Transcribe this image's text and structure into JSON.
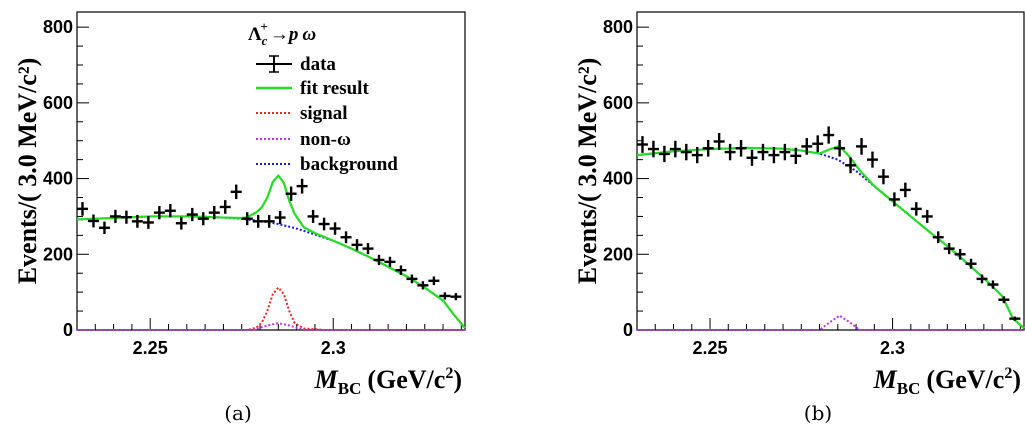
{
  "chart_data": [
    {
      "type": "line",
      "panel_label": "(a)",
      "process": "Λc+→p ω",
      "process_parts": {
        "lambda": "Λ",
        "lambda_sub": "c",
        "lambda_sup": "+",
        "arrow": "→",
        "p": "p",
        "omega": "ω"
      },
      "xlabel_main": "M",
      "xlabel_sub": "BC",
      "xlabel_units": "(GeV/c",
      "xlabel_sup": "2",
      "xlabel_close": ")",
      "ylabel": "Events/( 3.0 MeV/c²)",
      "xlim": [
        2.23,
        2.336
      ],
      "ylim": [
        0,
        840
      ],
      "xticks": [
        {
          "v": 2.25,
          "label": "2.25"
        },
        {
          "v": 2.3,
          "label": "2.3"
        }
      ],
      "yticks": [
        {
          "v": 0,
          "label": "0"
        },
        {
          "v": 200,
          "label": "200"
        },
        {
          "v": 400,
          "label": "400"
        },
        {
          "v": 600,
          "label": "600"
        },
        {
          "v": 800,
          "label": "800"
        }
      ],
      "legend": [
        {
          "label": "data",
          "style": "data",
          "color": "#000000"
        },
        {
          "label": "fit result",
          "style": "solid",
          "color": "#22dd22"
        },
        {
          "label": "signal",
          "style": "dotted",
          "color": "#ee2222"
        },
        {
          "label": "non-ω",
          "style": "dotted",
          "color": "#bb33ee"
        },
        {
          "label": "background",
          "style": "dotted",
          "color": "#1a1ad0"
        }
      ],
      "data_points": {
        "x": [
          2.2315,
          2.2345,
          2.2375,
          2.2405,
          2.2435,
          2.2465,
          2.2495,
          2.2525,
          2.2555,
          2.2585,
          2.2615,
          2.2645,
          2.2675,
          2.2705,
          2.2735,
          2.2765,
          2.2795,
          2.2825,
          2.2855,
          2.2885,
          2.2915,
          2.2945,
          2.2975,
          2.3005,
          2.3035,
          2.3065,
          2.3095,
          2.3125,
          2.3155,
          2.3185,
          2.3215,
          2.3245,
          2.3275,
          2.3305,
          2.3335
        ],
        "y": [
          320,
          288,
          270,
          300,
          298,
          287,
          284,
          310,
          315,
          282,
          305,
          294,
          310,
          325,
          365,
          294,
          287,
          287,
          297,
          360,
          380,
          300,
          280,
          268,
          245,
          225,
          215,
          185,
          180,
          158,
          135,
          118,
          130,
          90,
          88
        ]
      },
      "series": [
        {
          "name": "background",
          "x": [
            2.23,
            2.235,
            2.24,
            2.245,
            2.25,
            2.255,
            2.26,
            2.265,
            2.27,
            2.275,
            2.28,
            2.285,
            2.29,
            2.295,
            2.3,
            2.305,
            2.31,
            2.315,
            2.32,
            2.325,
            2.33,
            2.333,
            2.336
          ],
          "y": [
            292,
            294,
            296,
            298,
            300,
            300,
            300,
            299,
            297,
            294,
            288,
            280,
            268,
            252,
            236,
            215,
            192,
            167,
            142,
            112,
            78,
            40,
            5
          ]
        },
        {
          "name": "signal",
          "x": [
            2.23,
            2.27,
            2.2765,
            2.279,
            2.2805,
            2.282,
            2.2835,
            2.285,
            2.2865,
            2.288,
            2.2895,
            2.292,
            2.298,
            2.336
          ],
          "y": [
            0,
            0,
            0,
            6,
            20,
            50,
            95,
            112,
            95,
            50,
            18,
            4,
            0,
            0
          ]
        },
        {
          "name": "non-ω",
          "x": [
            2.23,
            2.278,
            2.282,
            2.285,
            2.288,
            2.292,
            2.336
          ],
          "y": [
            0,
            0,
            12,
            18,
            12,
            0,
            0
          ]
        },
        {
          "name": "fit result",
          "x": [
            2.23,
            2.24,
            2.25,
            2.26,
            2.27,
            2.275,
            2.2765,
            2.279,
            2.2805,
            2.282,
            2.2835,
            2.285,
            2.2865,
            2.288,
            2.2895,
            2.292,
            2.295,
            2.3,
            2.305,
            2.31,
            2.315,
            2.32,
            2.325,
            2.33,
            2.333,
            2.336
          ],
          "y": [
            292,
            296,
            300,
            300,
            297,
            296,
            298,
            311,
            324,
            350,
            391,
            408,
            389,
            341,
            306,
            271,
            256,
            236,
            215,
            192,
            167,
            142,
            112,
            78,
            40,
            5
          ]
        }
      ]
    },
    {
      "type": "line",
      "panel_label": "(b)",
      "xlabel_main": "M",
      "xlabel_sub": "BC",
      "xlabel_units": "(GeV/c",
      "xlabel_sup": "2",
      "xlabel_close": ")",
      "ylabel": "Events/( 3.0 MeV/c²)",
      "xlim": [
        2.23,
        2.336
      ],
      "ylim": [
        0,
        840
      ],
      "xticks": [
        {
          "v": 2.25,
          "label": "2.25"
        },
        {
          "v": 2.3,
          "label": "2.3"
        }
      ],
      "yticks": [
        {
          "v": 0,
          "label": "0"
        },
        {
          "v": 200,
          "label": "200"
        },
        {
          "v": 400,
          "label": "400"
        },
        {
          "v": 600,
          "label": "600"
        },
        {
          "v": 800,
          "label": "800"
        }
      ],
      "data_points": {
        "x": [
          2.2315,
          2.2345,
          2.2375,
          2.2405,
          2.2435,
          2.2465,
          2.2495,
          2.2525,
          2.2555,
          2.2585,
          2.2615,
          2.2645,
          2.2675,
          2.2705,
          2.2735,
          2.2765,
          2.2795,
          2.2825,
          2.2855,
          2.2885,
          2.2915,
          2.2945,
          2.2975,
          2.3005,
          2.3035,
          2.3065,
          2.3095,
          2.3125,
          2.3155,
          2.3185,
          2.3215,
          2.3245,
          2.3275,
          2.3305,
          2.3335
        ],
        "y": [
          490,
          478,
          465,
          478,
          470,
          462,
          480,
          498,
          470,
          480,
          455,
          470,
          462,
          470,
          460,
          485,
          492,
          515,
          480,
          435,
          485,
          450,
          405,
          345,
          370,
          320,
          300,
          245,
          215,
          200,
          175,
          135,
          120,
          80,
          30
        ]
      },
      "series": [
        {
          "name": "background",
          "x": [
            2.23,
            2.24,
            2.25,
            2.26,
            2.27,
            2.275,
            2.28,
            2.285,
            2.29,
            2.295,
            2.3,
            2.305,
            2.31,
            2.315,
            2.32,
            2.325,
            2.33,
            2.333,
            2.336
          ],
          "y": [
            462,
            472,
            478,
            481,
            479,
            474,
            466,
            450,
            420,
            380,
            340,
            300,
            260,
            222,
            180,
            137,
            90,
            30,
            5
          ]
        },
        {
          "name": "non-ω",
          "x": [
            2.23,
            2.28,
            2.283,
            2.2855,
            2.288,
            2.291,
            2.336
          ],
          "y": [
            0,
            0,
            22,
            38,
            22,
            0,
            0
          ]
        },
        {
          "name": "fit result",
          "x": [
            2.23,
            2.24,
            2.25,
            2.26,
            2.27,
            2.275,
            2.28,
            2.283,
            2.2855,
            2.288,
            2.291,
            2.295,
            2.3,
            2.305,
            2.31,
            2.315,
            2.32,
            2.325,
            2.33,
            2.333,
            2.336
          ],
          "y": [
            462,
            472,
            478,
            481,
            479,
            474,
            466,
            478,
            486,
            460,
            422,
            380,
            340,
            300,
            260,
            222,
            180,
            137,
            90,
            30,
            5
          ]
        }
      ]
    }
  ]
}
